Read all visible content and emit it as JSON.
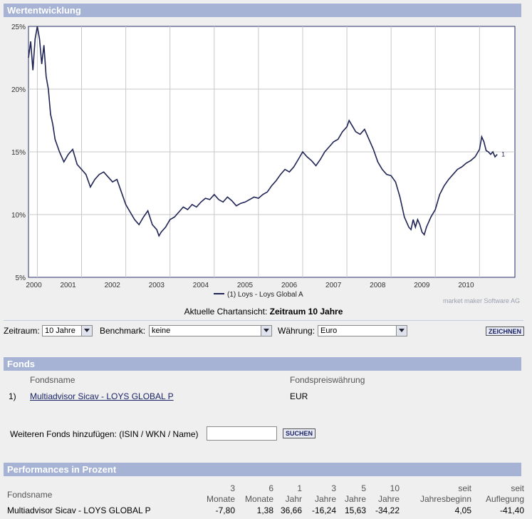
{
  "chart_section": {
    "title": "Wertentwicklung"
  },
  "chart_data": {
    "type": "line",
    "x_ticks": [
      "2000",
      "2001",
      "2002",
      "2003",
      "2004",
      "2005",
      "2006",
      "2007",
      "2008",
      "2009",
      "2010"
    ],
    "y_ticks": [
      "25%",
      "20%",
      "15%",
      "10%",
      "5%"
    ],
    "ylim": [
      5,
      25
    ],
    "xlim": [
      1999.8,
      2010.8
    ],
    "grid": true,
    "legend": "bottom",
    "series": [
      {
        "name": "(1)  Loys - Loys Global A",
        "end_label": "1",
        "color": "#1f2455",
        "x": [
          1999.8,
          1999.85,
          1999.9,
          1999.95,
          2000.0,
          2000.05,
          2000.1,
          2000.15,
          2000.2,
          2000.25,
          2000.3,
          2000.35,
          2000.4,
          2000.5,
          2000.6,
          2000.7,
          2000.8,
          2000.9,
          2001.0,
          2001.1,
          2001.2,
          2001.3,
          2001.4,
          2001.5,
          2001.6,
          2001.7,
          2001.8,
          2001.9,
          2002.0,
          2002.1,
          2002.2,
          2002.3,
          2002.4,
          2002.5,
          2002.6,
          2002.7,
          2002.75,
          2002.8,
          2002.9,
          2003.0,
          2003.1,
          2003.2,
          2003.3,
          2003.4,
          2003.5,
          2003.6,
          2003.7,
          2003.8,
          2003.9,
          2004.0,
          2004.1,
          2004.2,
          2004.3,
          2004.4,
          2004.5,
          2004.6,
          2004.7,
          2004.8,
          2004.9,
          2005.0,
          2005.1,
          2005.2,
          2005.3,
          2005.4,
          2005.5,
          2005.6,
          2005.7,
          2005.8,
          2005.9,
          2006.0,
          2006.1,
          2006.2,
          2006.3,
          2006.4,
          2006.5,
          2006.6,
          2006.7,
          2006.8,
          2006.9,
          2007.0,
          2007.05,
          2007.1,
          2007.2,
          2007.3,
          2007.4,
          2007.5,
          2007.6,
          2007.7,
          2007.8,
          2007.9,
          2008.0,
          2008.1,
          2008.2,
          2008.3,
          2008.4,
          2008.45,
          2008.5,
          2008.55,
          2008.6,
          2008.65,
          2008.7,
          2008.75,
          2008.8,
          2008.9,
          2009.0,
          2009.1,
          2009.2,
          2009.3,
          2009.4,
          2009.5,
          2009.6,
          2009.7,
          2009.8,
          2009.9,
          2010.0,
          2010.05,
          2010.1,
          2010.15,
          2010.2,
          2010.25,
          2010.3,
          2010.35,
          2010.4
        ],
        "y": [
          22.5,
          23.8,
          21.5,
          24.0,
          25.0,
          24.0,
          22.0,
          23.5,
          21.0,
          20.0,
          18.0,
          17.2,
          16.0,
          15.0,
          14.2,
          14.8,
          15.2,
          14.0,
          13.6,
          13.2,
          12.2,
          12.8,
          13.2,
          13.4,
          13.0,
          12.6,
          12.8,
          11.8,
          10.8,
          10.2,
          9.6,
          9.2,
          9.8,
          10.3,
          9.2,
          8.8,
          8.3,
          8.6,
          9.0,
          9.6,
          9.8,
          10.2,
          10.6,
          10.4,
          10.8,
          10.6,
          11.0,
          11.3,
          11.2,
          11.6,
          11.2,
          11.0,
          11.4,
          11.1,
          10.7,
          10.9,
          11.0,
          11.2,
          11.4,
          11.3,
          11.6,
          11.8,
          12.3,
          12.7,
          13.2,
          13.6,
          13.4,
          13.8,
          14.4,
          15.0,
          14.6,
          14.3,
          13.9,
          14.4,
          15.0,
          15.4,
          15.8,
          16.0,
          16.6,
          17.0,
          17.5,
          17.2,
          16.6,
          16.4,
          16.8,
          16.0,
          15.2,
          14.2,
          13.6,
          13.2,
          13.1,
          12.6,
          11.4,
          9.8,
          9.0,
          8.8,
          9.6,
          9.0,
          9.6,
          9.2,
          8.6,
          8.4,
          9.0,
          9.8,
          10.4,
          11.6,
          12.3,
          12.8,
          13.2,
          13.6,
          13.8,
          14.1,
          14.3,
          14.6,
          15.2,
          16.2,
          15.8,
          15.1,
          15.0,
          14.8,
          15.0,
          14.6,
          14.8
        ]
      }
    ]
  },
  "chart_footer": {
    "source": "market maker Software AG",
    "current_view_label": "Aktuelle Chartansicht:",
    "current_view_value": "Zeitraum 10 Jahre"
  },
  "controls": {
    "zeitraum_label": "Zeitraum:",
    "zeitraum_value": "10 Jahre",
    "benchmark_label": "Benchmark:",
    "benchmark_value": "keine",
    "waehrung_label": "Währung:",
    "waehrung_value": "Euro",
    "draw_button": "ZEICHNEN"
  },
  "fonds": {
    "title": "Fonds",
    "col_name": "Fondsname",
    "col_currency": "Fondspreiswährung",
    "rows": [
      {
        "num": "1)",
        "name": "Multiadvisor Sicav - LOYS GLOBAL P",
        "currency": "EUR"
      }
    ],
    "add_label": "Weiteren Fonds hinzufügen: (ISIN / WKN / Name)",
    "add_input_value": "",
    "search_button": "SUCHEN"
  },
  "performance": {
    "title": "Performances in Prozent",
    "col_name": "Fondsname",
    "headers": [
      [
        "3",
        "Monate"
      ],
      [
        "6",
        "Monate"
      ],
      [
        "1",
        "Jahr"
      ],
      [
        "3",
        "Jahre"
      ],
      [
        "5",
        "Jahre"
      ],
      [
        "10",
        "Jahre"
      ],
      [
        "seit",
        "Jahresbeginn"
      ],
      [
        "seit",
        "Auflegung"
      ]
    ],
    "row": {
      "name": "Multiadvisor Sicav - LOYS GLOBAL P",
      "values": [
        "-7,80",
        "1,38",
        "36,66",
        "-16,24",
        "15,63",
        "-34,22",
        "4,05",
        "-41,40"
      ]
    }
  }
}
